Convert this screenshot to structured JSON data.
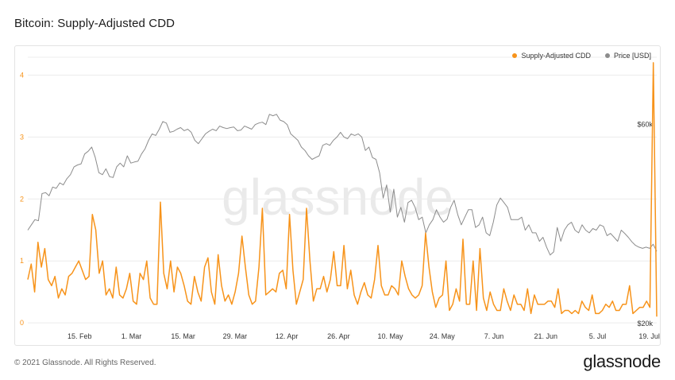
{
  "page": {
    "title": "Bitcoin: Supply-Adjusted CDD",
    "copyright": "© 2021 Glassnode. All Rights Reserved.",
    "logo": "glassnode",
    "watermark": "glassnode"
  },
  "chart_data": {
    "type": "line",
    "title": "Bitcoin: Supply-Adjusted CDD",
    "x_tick_labels": [
      "15. Feb",
      "1. Mar",
      "15. Mar",
      "29. Mar",
      "12. Apr",
      "26. Apr",
      "10. May",
      "24. May",
      "7. Jun",
      "21. Jun",
      "5. Jul",
      "19. Jul"
    ],
    "x_range": [
      "2021-02-01",
      "2021-07-21"
    ],
    "y_left": {
      "label": "",
      "ticks": [
        "0",
        "1",
        "2",
        "3",
        "4"
      ],
      "range": [
        -0.05,
        4.25
      ],
      "color": "#f7931a"
    },
    "y_right": {
      "label": "",
      "scale": "log",
      "ticks": [
        "$20k",
        "$60k"
      ],
      "range": [
        20000,
        64000
      ]
    },
    "grid": true,
    "legend_placement": "top-right",
    "series": [
      {
        "name": "Supply-Adjusted CDD",
        "axis": "left",
        "color": "#f7931a",
        "values": [
          0.7,
          0.95,
          0.5,
          1.3,
          0.9,
          1.2,
          0.7,
          0.6,
          0.75,
          0.4,
          0.55,
          0.45,
          0.75,
          0.8,
          0.9,
          1.0,
          0.85,
          0.7,
          0.75,
          1.75,
          1.5,
          0.8,
          1.0,
          0.45,
          0.55,
          0.4,
          0.9,
          0.45,
          0.4,
          0.55,
          0.8,
          0.35,
          0.3,
          0.8,
          0.7,
          1.0,
          0.4,
          0.3,
          0.3,
          1.95,
          0.8,
          0.55,
          1.0,
          0.5,
          0.9,
          0.8,
          0.6,
          0.35,
          0.3,
          0.75,
          0.5,
          0.35,
          0.9,
          1.05,
          0.5,
          0.3,
          1.1,
          0.6,
          0.35,
          0.45,
          0.3,
          0.5,
          0.8,
          1.4,
          0.9,
          0.45,
          0.3,
          0.35,
          0.9,
          1.85,
          0.45,
          0.5,
          0.55,
          0.5,
          0.8,
          0.85,
          0.55,
          1.75,
          0.85,
          0.3,
          0.5,
          0.7,
          1.85,
          1.0,
          0.35,
          0.55,
          0.55,
          0.75,
          0.5,
          0.7,
          1.15,
          0.6,
          0.6,
          1.25,
          0.55,
          0.85,
          0.45,
          0.3,
          0.5,
          0.65,
          0.45,
          0.4,
          0.7,
          1.25,
          0.6,
          0.45,
          0.45,
          0.6,
          0.55,
          0.45,
          1.0,
          0.75,
          0.55,
          0.45,
          0.4,
          0.45,
          0.6,
          1.45,
          0.9,
          0.5,
          0.25,
          0.4,
          0.45,
          1.0,
          0.2,
          0.3,
          0.55,
          0.35,
          1.35,
          0.3,
          0.3,
          1.0,
          0.2,
          1.2,
          0.4,
          0.2,
          0.5,
          0.3,
          0.2,
          0.2,
          0.55,
          0.35,
          0.2,
          0.45,
          0.3,
          0.3,
          0.2,
          0.55,
          0.15,
          0.45,
          0.3,
          0.3,
          0.3,
          0.35,
          0.35,
          0.25,
          0.55,
          0.15,
          0.2,
          0.2,
          0.15,
          0.2,
          0.15,
          0.35,
          0.25,
          0.2,
          0.45,
          0.15,
          0.15,
          0.2,
          0.3,
          0.25,
          0.35,
          0.2,
          0.2,
          0.3,
          0.3,
          0.6,
          0.15,
          0.2,
          0.25,
          0.25,
          0.35,
          0.25,
          4.2,
          0.1
        ]
      },
      {
        "name": "Price [USD]",
        "axis": "right",
        "color": "#8c8c8c",
        "values": [
          33500,
          34500,
          35500,
          35300,
          41000,
          41200,
          40500,
          42500,
          42200,
          43500,
          43000,
          44500,
          45500,
          47500,
          48000,
          48300,
          51000,
          51800,
          53000,
          50000,
          46000,
          45500,
          47000,
          45000,
          44800,
          47500,
          48500,
          47500,
          50500,
          48500,
          48800,
          49000,
          51000,
          52500,
          55000,
          57000,
          56500,
          58500,
          61000,
          60500,
          57500,
          57800,
          58500,
          59000,
          58000,
          58500,
          57500,
          55000,
          54000,
          55500,
          57000,
          57800,
          58500,
          58000,
          59500,
          59000,
          58700,
          59000,
          59200,
          58000,
          58200,
          59500,
          59000,
          58500,
          60000,
          60500,
          60800,
          60000,
          63500,
          63000,
          63500,
          61500,
          61000,
          60000,
          57000,
          56000,
          55000,
          53000,
          52000,
          50500,
          49500,
          50000,
          50500,
          53500,
          54000,
          53500,
          55000,
          56000,
          57500,
          56000,
          55500,
          57000,
          56500,
          57000,
          56000,
          52000,
          53000,
          50000,
          49500,
          46000,
          40000,
          43000,
          37000,
          42000,
          36000,
          38000,
          35000,
          39000,
          39500,
          38000,
          35500,
          36000,
          33000,
          34500,
          35500,
          37500,
          36000,
          35000,
          35600,
          38000,
          39500,
          36500,
          34500,
          36000,
          37500,
          37500,
          34000,
          34500,
          36000,
          33000,
          32500,
          35000,
          38500,
          40000,
          39000,
          38000,
          35500,
          35500,
          35500,
          36000,
          33500,
          34500,
          33000,
          33000,
          31500,
          32200,
          30500,
          29200,
          29700,
          34000,
          31500,
          33500,
          34500,
          35000,
          33500,
          33000,
          34500,
          33500,
          33000,
          33800,
          33500,
          34500,
          34200,
          32500,
          32900,
          32200,
          31500,
          33500,
          32900,
          32200,
          31400,
          30800,
          30500,
          30300,
          30500,
          30300,
          31000,
          29800
        ]
      }
    ]
  }
}
